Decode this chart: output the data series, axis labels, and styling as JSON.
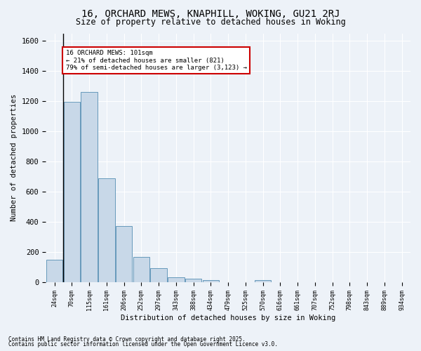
{
  "title1": "16, ORCHARD MEWS, KNAPHILL, WOKING, GU21 2RJ",
  "title2": "Size of property relative to detached houses in Woking",
  "xlabel": "Distribution of detached houses by size in Woking",
  "ylabel": "Number of detached properties",
  "bar_color": "#c8d8e8",
  "bar_edge_color": "#6699bb",
  "background_color": "#edf2f8",
  "grid_color": "#ffffff",
  "categories": [
    "24sqm",
    "70sqm",
    "115sqm",
    "161sqm",
    "206sqm",
    "252sqm",
    "297sqm",
    "343sqm",
    "388sqm",
    "434sqm",
    "479sqm",
    "525sqm",
    "570sqm",
    "616sqm",
    "661sqm",
    "707sqm",
    "752sqm",
    "798sqm",
    "843sqm",
    "889sqm",
    "934sqm"
  ],
  "values": [
    150,
    1195,
    1260,
    690,
    375,
    170,
    95,
    35,
    25,
    15,
    0,
    0,
    15,
    0,
    0,
    0,
    0,
    0,
    0,
    0,
    0
  ],
  "vline_x": 0.5,
  "annotation_text": "16 ORCHARD MEWS: 101sqm\n← 21% of detached houses are smaller (821)\n79% of semi-detached houses are larger (3,123) →",
  "annotation_box_color": "#ffffff",
  "annotation_border_color": "#cc0000",
  "vline_color": "#000000",
  "ylim": [
    0,
    1650
  ],
  "title1_fontsize": 10,
  "title2_fontsize": 8.5,
  "footnote1": "Contains HM Land Registry data © Crown copyright and database right 2025.",
  "footnote2": "Contains public sector information licensed under the Open Government Licence v3.0."
}
